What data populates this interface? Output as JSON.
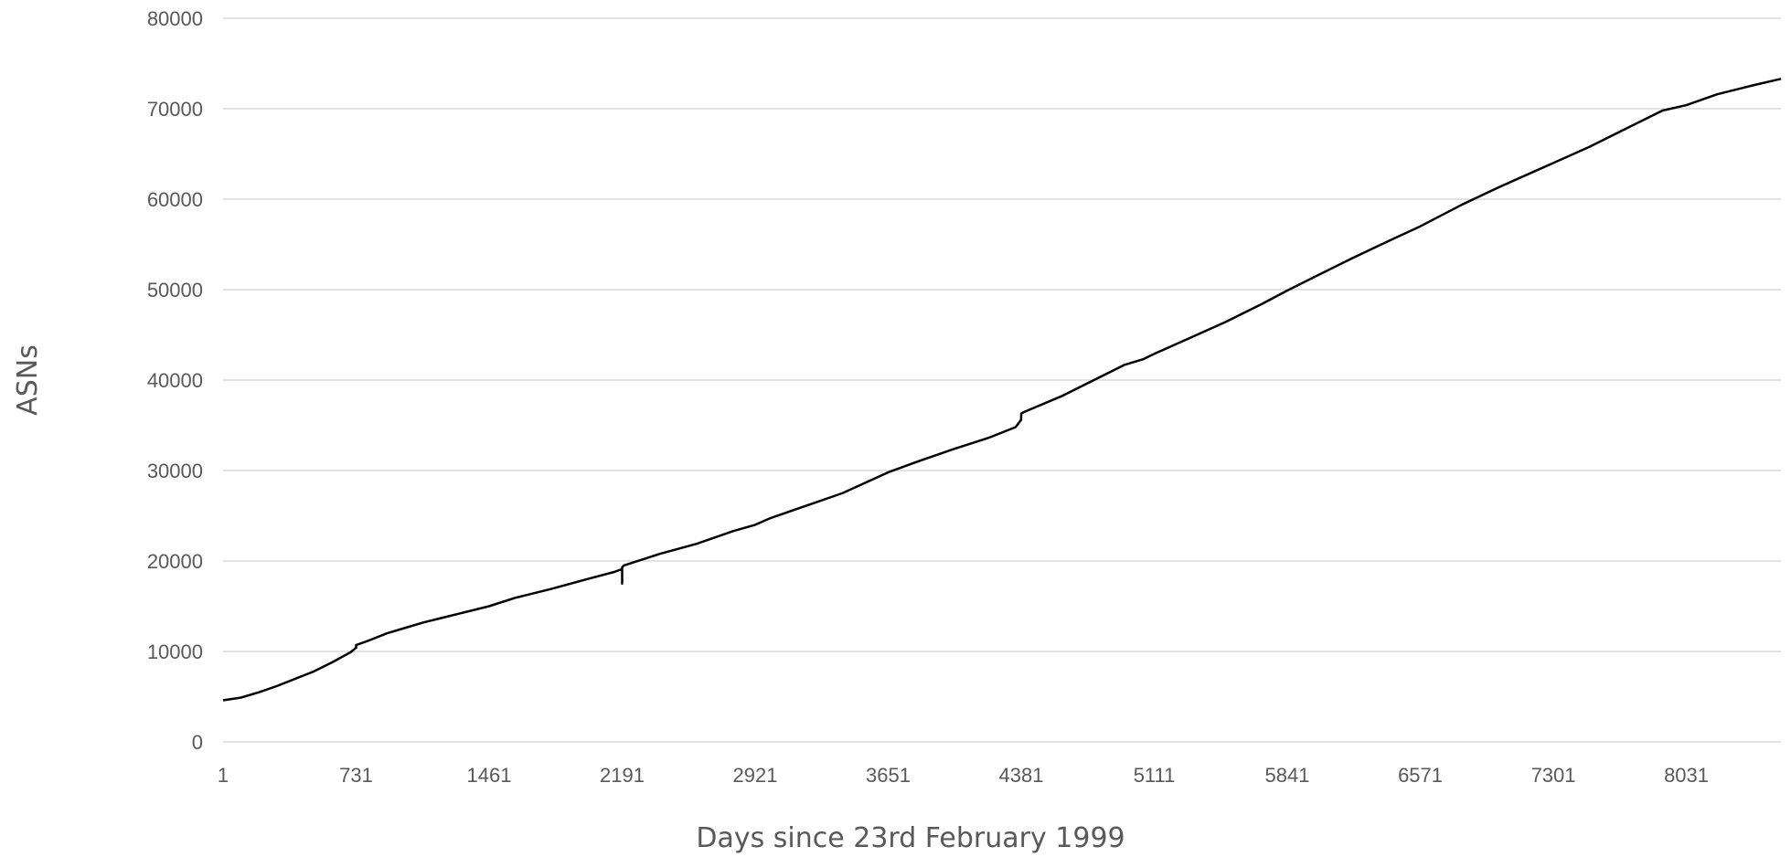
{
  "chart_data": {
    "type": "line",
    "title": "",
    "xlabel": "Days since 23rd February 1999",
    "ylabel": "ASNs",
    "xlim": [
      1,
      8550
    ],
    "ylim": [
      0,
      80000
    ],
    "grid": true,
    "x_ticks": [
      1,
      731,
      1461,
      2191,
      2921,
      3651,
      4381,
      5111,
      5841,
      6571,
      7301,
      8031
    ],
    "x_tick_labels": [
      "1",
      "731",
      "1461",
      "2191",
      "2921",
      "3651",
      "4381",
      "5111",
      "5841",
      "6571",
      "7301",
      "8031"
    ],
    "y_ticks": [
      0,
      10000,
      20000,
      30000,
      40000,
      50000,
      60000,
      70000,
      80000
    ],
    "y_tick_labels": [
      "0",
      "10000",
      "20000",
      "30000",
      "40000",
      "50000",
      "60000",
      "70000",
      "80000"
    ],
    "series": [
      {
        "color": "#000000",
        "x": [
          1,
          100,
          200,
          300,
          400,
          450,
          500,
          600,
          700,
          730,
          731,
          731,
          800,
          900,
          1000,
          1100,
          1200,
          1300,
          1461,
          1600,
          1800,
          2000,
          2150,
          2190,
          2191,
          2191,
          2191,
          2200,
          2400,
          2600,
          2800,
          2921,
          3000,
          3200,
          3400,
          3651,
          3800,
          4000,
          4200,
          4350,
          4380,
          4381,
          4400,
          4600,
          4800,
          4950,
          5000,
          5050,
          5111,
          5300,
          5500,
          5700,
          5841,
          6000,
          6200,
          6400,
          6571,
          6800,
          7000,
          7200,
          7301,
          7500,
          7700,
          7900,
          8031,
          8200,
          8400,
          8550
        ],
        "y": [
          4600,
          4900,
          5500,
          6200,
          7000,
          7400,
          7800,
          8800,
          9900,
          10400,
          10400,
          10700,
          11200,
          12000,
          12600,
          13200,
          13700,
          14200,
          15000,
          15900,
          16900,
          18000,
          18800,
          19100,
          19100,
          17500,
          19300,
          19500,
          20800,
          21900,
          23300,
          24000,
          24700,
          26100,
          27500,
          29800,
          30900,
          32300,
          33600,
          34800,
          35600,
          36300,
          36500,
          38200,
          40200,
          41700,
          42000,
          42300,
          42900,
          44600,
          46400,
          48400,
          49900,
          51500,
          53500,
          55400,
          57000,
          59400,
          61300,
          63100,
          64000,
          65800,
          67800,
          69800,
          70400,
          71600,
          72600,
          73300
        ]
      }
    ]
  }
}
